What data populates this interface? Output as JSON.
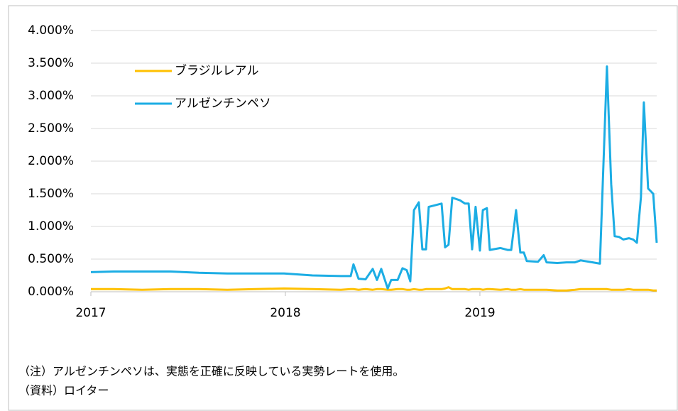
{
  "chart_data": {
    "type": "line",
    "x": [
      2017.0,
      2017.117,
      2017.263,
      2017.409,
      2017.555,
      2017.701,
      2017.847,
      2017.993,
      2018.139,
      2018.285,
      2018.336,
      2018.35,
      2018.376,
      2018.412,
      2018.449,
      2018.471,
      2018.493,
      2018.526,
      2018.544,
      2018.577,
      2018.602,
      2018.624,
      2018.642,
      2018.661,
      2018.686,
      2018.704,
      2018.723,
      2018.737,
      2018.803,
      2018.821,
      2018.839,
      2018.858,
      2018.898,
      2018.923,
      2018.942,
      2018.96,
      2018.978,
      2019.0,
      2019.015,
      2019.036,
      2019.051,
      2019.106,
      2019.142,
      2019.161,
      2019.186,
      2019.208,
      2019.226,
      2019.241,
      2019.299,
      2019.328,
      2019.343,
      2019.398,
      2019.445,
      2019.489,
      2019.518,
      2019.58,
      2019.617,
      2019.653,
      2019.675,
      2019.693,
      2019.715,
      2019.737,
      2019.766,
      2019.788,
      2019.807,
      2019.828,
      2019.843,
      2019.865,
      2019.891,
      2019.909
    ],
    "series": [
      {
        "name": "ブラジルレアル",
        "color": "#FFC000",
        "values": [
          0.04,
          0.04,
          0.03,
          0.04,
          0.04,
          0.03,
          0.04,
          0.05,
          0.04,
          0.03,
          0.04,
          0.04,
          0.03,
          0.04,
          0.03,
          0.04,
          0.04,
          0.03,
          0.03,
          0.04,
          0.04,
          0.03,
          0.03,
          0.04,
          0.03,
          0.03,
          0.04,
          0.04,
          0.04,
          0.05,
          0.07,
          0.04,
          0.04,
          0.04,
          0.03,
          0.04,
          0.04,
          0.04,
          0.03,
          0.04,
          0.04,
          0.03,
          0.04,
          0.03,
          0.03,
          0.04,
          0.03,
          0.03,
          0.03,
          0.03,
          0.03,
          0.02,
          0.02,
          0.03,
          0.04,
          0.04,
          0.04,
          0.04,
          0.03,
          0.03,
          0.03,
          0.03,
          0.04,
          0.03,
          0.03,
          0.03,
          0.03,
          0.03,
          0.02,
          0.02
        ]
      },
      {
        "name": "アルゼンチンペソ",
        "color": "#1CADE4",
        "values": [
          0.3,
          0.31,
          0.31,
          0.31,
          0.29,
          0.28,
          0.28,
          0.28,
          0.25,
          0.24,
          0.24,
          0.42,
          0.2,
          0.19,
          0.35,
          0.18,
          0.35,
          0.05,
          0.18,
          0.18,
          0.36,
          0.33,
          0.16,
          1.25,
          1.37,
          0.65,
          0.65,
          1.3,
          1.35,
          0.68,
          0.72,
          1.44,
          1.4,
          1.35,
          1.35,
          0.65,
          1.3,
          0.63,
          1.25,
          1.28,
          0.64,
          0.67,
          0.64,
          0.64,
          1.25,
          0.6,
          0.6,
          0.47,
          0.46,
          0.56,
          0.45,
          0.44,
          0.45,
          0.45,
          0.48,
          0.45,
          0.43,
          3.45,
          1.65,
          0.85,
          0.84,
          0.8,
          0.82,
          0.8,
          0.75,
          1.45,
          2.9,
          1.58,
          1.5,
          0.75
        ]
      }
    ],
    "xlim": [
      2017,
      2019.909
    ],
    "xticks": [
      2017,
      2018,
      2019
    ],
    "ylim": [
      0,
      4
    ],
    "yticks": [
      {
        "value": 0,
        "label": "0.000%"
      },
      {
        "value": 0.5,
        "label": "0.500%"
      },
      {
        "value": 1,
        "label": "1.000%"
      },
      {
        "value": 1.5,
        "label": "1.500%"
      },
      {
        "value": 2,
        "label": "2.000%"
      },
      {
        "value": 2.5,
        "label": "2.500%"
      },
      {
        "value": 3,
        "label": "3.000%"
      },
      {
        "value": 3.5,
        "label": "3.500%"
      },
      {
        "value": 4,
        "label": "4.000%"
      }
    ],
    "grid": true,
    "legend": "top-left",
    "notes": [
      "（注）アルゼンチンペソは、実態を正確に反映している実勢レートを使用。",
      "（資料）ロイター"
    ]
  }
}
